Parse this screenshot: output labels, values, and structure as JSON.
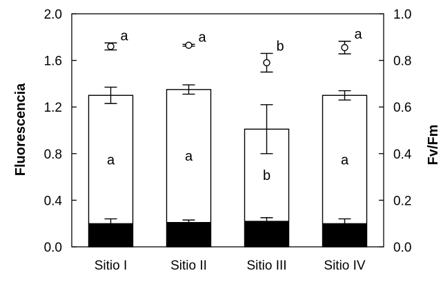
{
  "chart_data": {
    "type": "bar",
    "categories": [
      "Sitio I",
      "Sitio II",
      "Sitio III",
      "Sitio IV"
    ],
    "ylabel": "Fluorescencia",
    "y2label": "Fv/Fm",
    "ylim": [
      0,
      2.0
    ],
    "y2lim": [
      0,
      1.0
    ],
    "yticks": [
      "0.0",
      "0.4",
      "0.8",
      "1.2",
      "1.6",
      "2.0"
    ],
    "y2ticks": [
      "0.0",
      "0.2",
      "0.4",
      "0.6",
      "0.8",
      "1.0"
    ],
    "grid": false,
    "colors": {
      "fo": "#000000",
      "fm": "#ffffff",
      "axis": "#000000"
    },
    "series": [
      {
        "axis": "left",
        "style": "filled-bar",
        "values": [
          0.2,
          0.21,
          0.22,
          0.2
        ],
        "errors": [
          0.04,
          0.02,
          0.03,
          0.04
        ]
      },
      {
        "axis": "left",
        "style": "open-bar",
        "values": [
          1.3,
          1.35,
          1.01,
          1.3
        ],
        "errors": [
          0.07,
          0.04,
          0.21,
          0.04
        ],
        "letters": [
          "a",
          "a",
          "b",
          "a"
        ]
      },
      {
        "axis": "right",
        "style": "open-circle",
        "values": [
          0.86,
          0.865,
          0.79,
          0.855
        ],
        "errors": [
          0.015,
          0.004,
          0.04,
          0.027
        ],
        "letters": [
          "a",
          "a",
          "b",
          "a"
        ]
      }
    ]
  }
}
